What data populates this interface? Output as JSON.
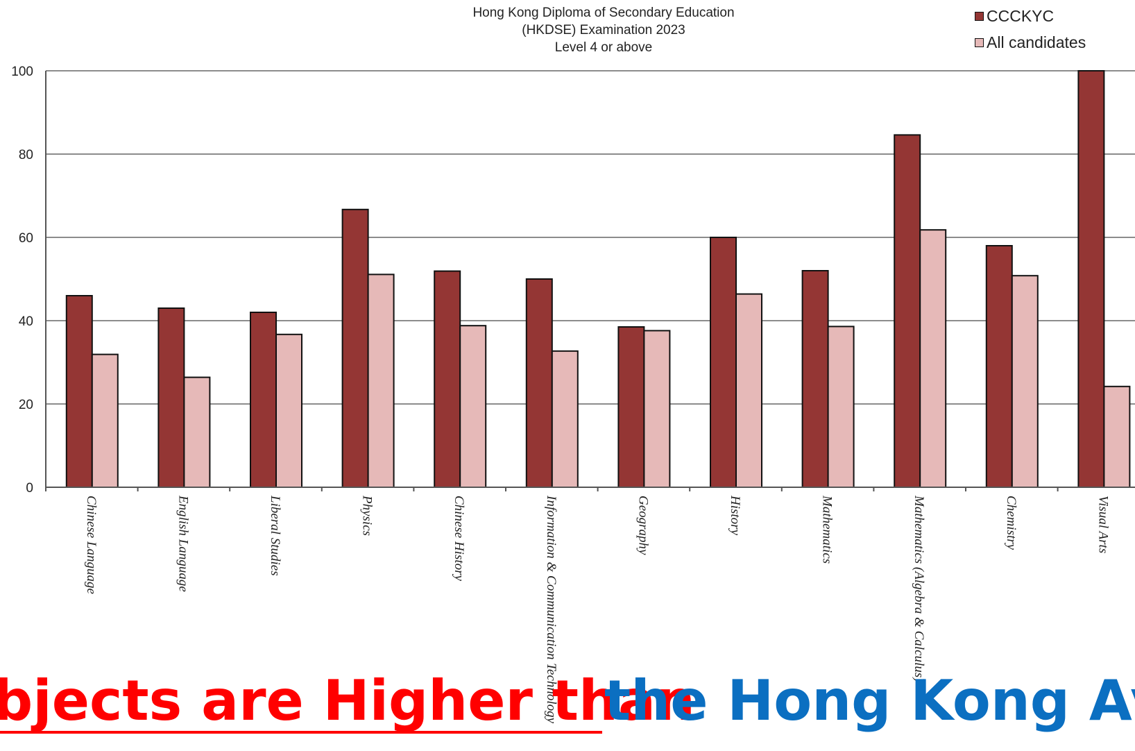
{
  "chart_data": {
    "type": "bar",
    "title": [
      "Hong Kong Diploma of Secondary Education",
      "(HKDSE) Examination 2023",
      "Level 4 or above"
    ],
    "categories": [
      "Chinese Language",
      "English Language",
      "Liberal Studies",
      "Physics",
      "Chinese History",
      "Information & Communication Technology",
      "Geography",
      "History",
      "Mathematics",
      "Mathematics (Algebra & Calculus)",
      "Chemistry",
      "Visual Arts"
    ],
    "series": [
      {
        "name": "CCCKYC",
        "color": "#943634",
        "values": [
          46,
          43,
          42,
          66.7,
          51.9,
          50,
          38.5,
          60,
          52,
          84.6,
          58,
          100
        ]
      },
      {
        "name": "All candidates",
        "color": "#e6b9b8",
        "values": [
          31.9,
          26.4,
          36.7,
          51.1,
          38.8,
          32.7,
          37.6,
          46.4,
          38.6,
          61.8,
          50.8,
          24.2
        ]
      }
    ],
    "ylim": [
      0,
      100
    ],
    "yticks": [
      0,
      20,
      40,
      60,
      80,
      100
    ],
    "grid": true,
    "legend_position": "top-right"
  },
  "banner": {
    "red_text": "bjects are Higher than",
    "blue_text": "the Hong Kong Aver"
  }
}
